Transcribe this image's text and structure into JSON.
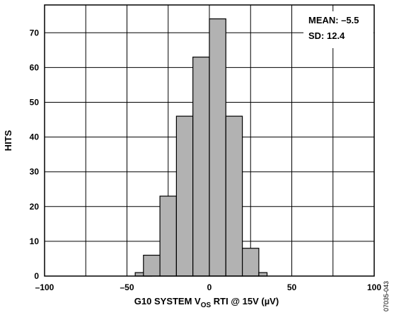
{
  "chart_data": {
    "type": "bar",
    "subtype": "histogram",
    "bin_width": 10,
    "bins": [
      {
        "x_start": -45,
        "x_end": -35,
        "value": 1
      },
      {
        "x_start": -40,
        "x_end": -30,
        "value": 6
      },
      {
        "x_start": -30,
        "x_end": -20,
        "value": 23
      },
      {
        "x_start": -20,
        "x_end": -10,
        "value": 46
      },
      {
        "x_start": -10,
        "x_end": 0,
        "value": 63
      },
      {
        "x_start": 0,
        "x_end": 10,
        "value": 74
      },
      {
        "x_start": 10,
        "x_end": 20,
        "value": 46
      },
      {
        "x_start": 20,
        "x_end": 30,
        "value": 8
      },
      {
        "x_start": 30,
        "x_end": 35,
        "value": 1
      }
    ],
    "xlim": [
      -100,
      100
    ],
    "ylim": [
      0,
      78
    ],
    "xticks": [
      -100,
      -50,
      0,
      50,
      100
    ],
    "xtick_labels": [
      "–100",
      "–50",
      "0",
      "50",
      "100"
    ],
    "yticks": [
      0,
      10,
      20,
      30,
      40,
      50,
      60,
      70
    ],
    "ytick_labels": [
      "0",
      "10",
      "20",
      "30",
      "40",
      "50",
      "60",
      "70"
    ],
    "xlabel": {
      "main": "G10 SYSTEM V",
      "sub": "OS",
      "rest": " RTI @ 15V (µV)"
    },
    "ylabel": "HITS",
    "grid": true,
    "legend_placement": "top-right",
    "annotation": {
      "line1": "MEAN: –5.5",
      "line2": "SD: 12.4"
    },
    "figure_id": "07035-043",
    "bar_color": "#b2b2b2",
    "edge_color": "#000000",
    "grid_color": "#000000"
  }
}
